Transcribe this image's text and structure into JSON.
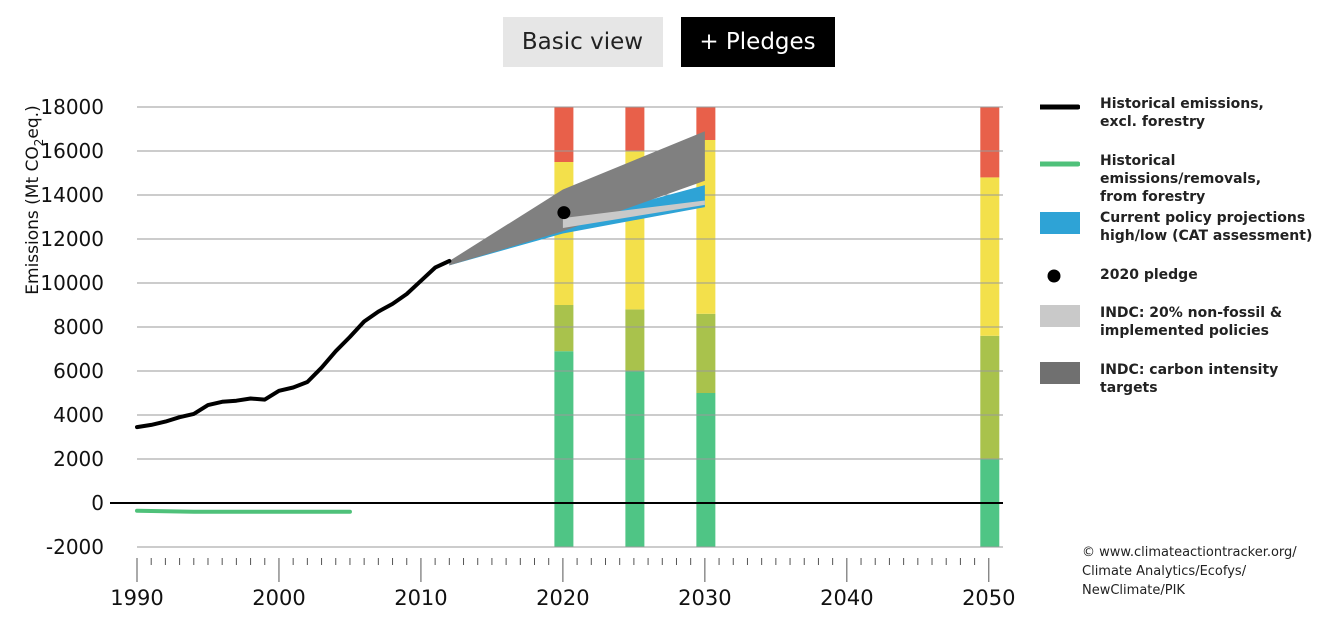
{
  "buttons": {
    "basic_label": "Basic view",
    "pledges_label": "+ Pledges"
  },
  "chart_data": {
    "type": "line",
    "ylabel_prefix": "Emissions (Mt CO",
    "ylabel_sub": "2",
    "ylabel_suffix": "eq.)",
    "xlim": [
      1990,
      2051
    ],
    "ylim": [
      -2000,
      18000
    ],
    "y_ticks": [
      -2000,
      0,
      2000,
      4000,
      6000,
      8000,
      10000,
      12000,
      14000,
      16000,
      18000
    ],
    "y_tick_labels": [
      "-2000",
      "0",
      "2000",
      "4000",
      "6000",
      "8000",
      "10000",
      "12000",
      "14000",
      "16000",
      "18000"
    ],
    "x_ticks": [
      1990,
      2000,
      2010,
      2020,
      2030,
      2040,
      2050
    ],
    "x_tick_labels": [
      "1990",
      "2000",
      "2010",
      "2020",
      "2030",
      "2040",
      "2050"
    ],
    "series": [
      {
        "name": "Historical emissions, excl. forestry",
        "color": "#000000",
        "x": [
          1990,
          1991,
          1992,
          1993,
          1994,
          1995,
          1996,
          1997,
          1998,
          1999,
          2000,
          2001,
          2002,
          2003,
          2004,
          2005,
          2006,
          2007,
          2008,
          2009,
          2010,
          2011,
          2012
        ],
        "y": [
          3450,
          3550,
          3700,
          3900,
          4050,
          4450,
          4600,
          4650,
          4750,
          4700,
          5100,
          5250,
          5500,
          6150,
          6900,
          7550,
          8250,
          8700,
          9050,
          9500,
          10100,
          10700,
          11000
        ]
      },
      {
        "name": "Historical emissions/removals, from forestry",
        "color": "#4fc17a",
        "x": [
          1990,
          1994,
          2005
        ],
        "y": [
          -350,
          -400,
          -400
        ]
      }
    ],
    "bands": [
      {
        "name": "Current policy projections high/low (CAT assessment)",
        "color": "#2ea3d6",
        "x": [
          2012,
          2020,
          2030
        ],
        "low": [
          10800,
          12250,
          13450
        ],
        "high": [
          11000,
          12700,
          14450
        ]
      },
      {
        "name": "INDC: carbon intensity targets",
        "color": "#808080",
        "x": [
          2012,
          2020,
          2030
        ],
        "low": [
          10800,
          12350,
          14650
        ],
        "high": [
          11000,
          14250,
          16900
        ]
      },
      {
        "name": "INDC: 20% non-fossil & implemented policies",
        "color": "#c9c9c9",
        "x": [
          2020,
          2030
        ],
        "low": [
          12500,
          13550
        ],
        "high": [
          12950,
          13750
        ]
      }
    ],
    "points": [
      {
        "name": "2020 pledge",
        "x": 2020,
        "y": 13200,
        "color": "#000000"
      }
    ],
    "rating_bars": [
      {
        "year": 2020,
        "segments": [
          {
            "from": -2000,
            "to": 6900,
            "color": "#4fc585"
          },
          {
            "from": 6900,
            "to": 9000,
            "color": "#a9c24c"
          },
          {
            "from": 9000,
            "to": 15500,
            "color": "#f3e04b"
          },
          {
            "from": 15500,
            "to": 18000,
            "color": "#e8604a"
          }
        ]
      },
      {
        "year": 2025,
        "segments": [
          {
            "from": -2000,
            "to": 6000,
            "color": "#4fc585"
          },
          {
            "from": 6000,
            "to": 8800,
            "color": "#a9c24c"
          },
          {
            "from": 8800,
            "to": 16000,
            "color": "#f3e04b"
          },
          {
            "from": 16000,
            "to": 18000,
            "color": "#e8604a"
          }
        ]
      },
      {
        "year": 2030,
        "segments": [
          {
            "from": -2000,
            "to": 5000,
            "color": "#4fc585"
          },
          {
            "from": 5000,
            "to": 8600,
            "color": "#a9c24c"
          },
          {
            "from": 8600,
            "to": 16500,
            "color": "#f3e04b"
          },
          {
            "from": 16500,
            "to": 18000,
            "color": "#e8604a"
          }
        ]
      },
      {
        "year": 2050,
        "segments": [
          {
            "from": -2000,
            "to": 2000,
            "color": "#4fc585"
          },
          {
            "from": 2000,
            "to": 7600,
            "color": "#a9c24c"
          },
          {
            "from": 7600,
            "to": 14800,
            "color": "#f3e04b"
          },
          {
            "from": 14800,
            "to": 18000,
            "color": "#e8604a"
          }
        ]
      }
    ],
    "legend_position": "right"
  },
  "legend": {
    "items": [
      {
        "label": "Historical emissions,\nexcl. forestry",
        "kind": "line",
        "color": "#000000"
      },
      {
        "label": "Historical emissions/removals,\nfrom forestry",
        "kind": "line",
        "color": "#4fc17a"
      },
      {
        "label": "Current policy projections\nhigh/low (CAT assessment)",
        "kind": "box",
        "color": "#2ea3d6"
      },
      {
        "label": "2020 pledge",
        "kind": "dot",
        "color": "#000000"
      },
      {
        "label": "INDC: 20% non-fossil &\nimplemented policies",
        "kind": "box",
        "color": "#c9c9c9"
      },
      {
        "label": "INDC: carbon intensity\ntargets",
        "kind": "box",
        "color": "#707070"
      }
    ]
  },
  "credits": "© www.climateactiontracker.org/\nClimate Analytics/Ecofys/\nNewClimate/PIK"
}
